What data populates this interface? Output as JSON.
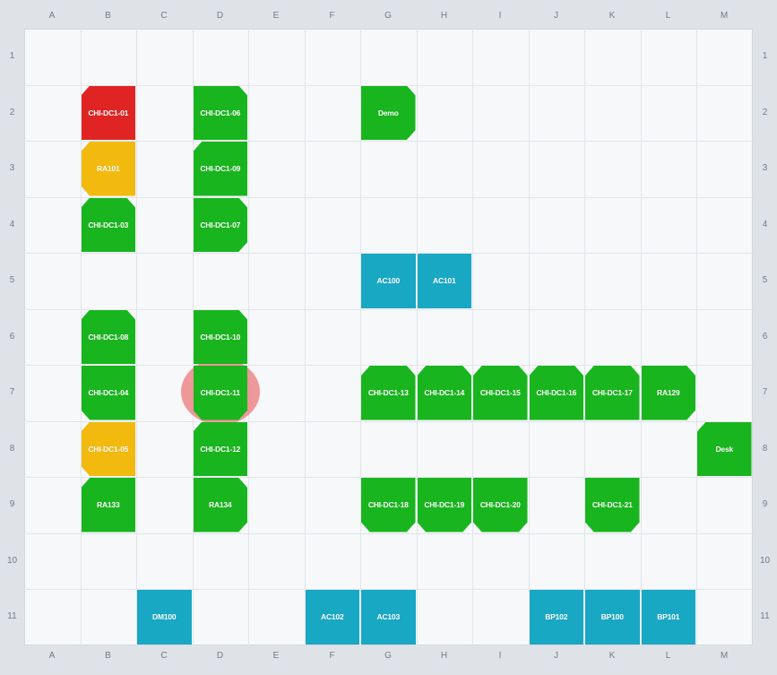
{
  "colors": {
    "available": "#19b51e",
    "occupied": "#e02424",
    "reserved": "#f2b90f",
    "room": "#19a8c4",
    "marker": "#ec7878"
  },
  "columns": [
    "A",
    "B",
    "C",
    "D",
    "E",
    "F",
    "G",
    "H",
    "I",
    "J",
    "K",
    "L",
    "M"
  ],
  "rows": [
    "1",
    "2",
    "3",
    "4",
    "5",
    "6",
    "7",
    "8",
    "9",
    "10",
    "11"
  ],
  "tiles": [
    {
      "label": "CHI-DC1-01",
      "col": "B",
      "row": "2",
      "status": "occupied",
      "shape": "cut-tl"
    },
    {
      "label": "CHI-DC1-06",
      "col": "D",
      "row": "2",
      "status": "available",
      "shape": "cut-tr"
    },
    {
      "label": "Demo",
      "col": "G",
      "row": "2",
      "status": "available",
      "shape": "cut-rgt"
    },
    {
      "label": "RA101",
      "col": "B",
      "row": "3",
      "status": "reserved",
      "shape": "cut-left"
    },
    {
      "label": "CHI-DC1-09",
      "col": "D",
      "row": "3",
      "status": "available",
      "shape": "cut-tl"
    },
    {
      "label": "CHI-DC1-03",
      "col": "B",
      "row": "4",
      "status": "available",
      "shape": "cut-top"
    },
    {
      "label": "CHI-DC1-07",
      "col": "D",
      "row": "4",
      "status": "available",
      "shape": "cut-rgt"
    },
    {
      "label": "AC100",
      "col": "G",
      "row": "5",
      "status": "room",
      "shape": "cut-none"
    },
    {
      "label": "AC101",
      "col": "H",
      "row": "5",
      "status": "room",
      "shape": "cut-none"
    },
    {
      "label": "CHI-DC1-08",
      "col": "B",
      "row": "6",
      "status": "available",
      "shape": "cut-top"
    },
    {
      "label": "CHI-DC1-10",
      "col": "D",
      "row": "6",
      "status": "available",
      "shape": "cut-tr"
    },
    {
      "label": "CHI-DC1-04",
      "col": "B",
      "row": "7",
      "status": "available",
      "shape": "cut-bl"
    },
    {
      "label": "CHI-DC1-11",
      "col": "D",
      "row": "7",
      "status": "available",
      "shape": "cut-bot"
    },
    {
      "label": "CHI-DC1-13",
      "col": "G",
      "row": "7",
      "status": "available",
      "shape": "cut-top"
    },
    {
      "label": "CHI-DC1-14",
      "col": "H",
      "row": "7",
      "status": "available",
      "shape": "cut-top"
    },
    {
      "label": "CHI-DC1-15",
      "col": "I",
      "row": "7",
      "status": "available",
      "shape": "cut-top"
    },
    {
      "label": "CHI-DC1-16",
      "col": "J",
      "row": "7",
      "status": "available",
      "shape": "cut-top"
    },
    {
      "label": "CHI-DC1-17",
      "col": "K",
      "row": "7",
      "status": "available",
      "shape": "cut-top"
    },
    {
      "label": "RA129",
      "col": "L",
      "row": "7",
      "status": "available",
      "shape": "cut-rgt"
    },
    {
      "label": "CHI-DC1-05",
      "col": "B",
      "row": "8",
      "status": "reserved",
      "shape": "cut-left"
    },
    {
      "label": "CHI-DC1-12",
      "col": "D",
      "row": "8",
      "status": "available",
      "shape": "cut-tl"
    },
    {
      "label": "Desk",
      "col": "M",
      "row": "8",
      "status": "available",
      "shape": "cut-tl"
    },
    {
      "label": "RA133",
      "col": "B",
      "row": "9",
      "status": "available",
      "shape": "cut-tl"
    },
    {
      "label": "RA134",
      "col": "D",
      "row": "9",
      "status": "available",
      "shape": "cut-rgt"
    },
    {
      "label": "CHI-DC1-18",
      "col": "G",
      "row": "9",
      "status": "available",
      "shape": "cut-bot"
    },
    {
      "label": "CHI-DC1-19",
      "col": "H",
      "row": "9",
      "status": "available",
      "shape": "cut-bot"
    },
    {
      "label": "CHI-DC1-20",
      "col": "I",
      "row": "9",
      "status": "available",
      "shape": "cut-bot"
    },
    {
      "label": "CHI-DC1-21",
      "col": "K",
      "row": "9",
      "status": "available",
      "shape": "cut-bot"
    },
    {
      "label": "DM100",
      "col": "C",
      "row": "11",
      "status": "room",
      "shape": "cut-none"
    },
    {
      "label": "AC102",
      "col": "F",
      "row": "11",
      "status": "room",
      "shape": "cut-none"
    },
    {
      "label": "AC103",
      "col": "G",
      "row": "11",
      "status": "room",
      "shape": "cut-none"
    },
    {
      "label": "BP102",
      "col": "J",
      "row": "11",
      "status": "room",
      "shape": "cut-none"
    },
    {
      "label": "BP100",
      "col": "K",
      "row": "11",
      "status": "room",
      "shape": "cut-none"
    },
    {
      "label": "BP101",
      "col": "L",
      "row": "11",
      "status": "room",
      "shape": "cut-none"
    }
  ]
}
